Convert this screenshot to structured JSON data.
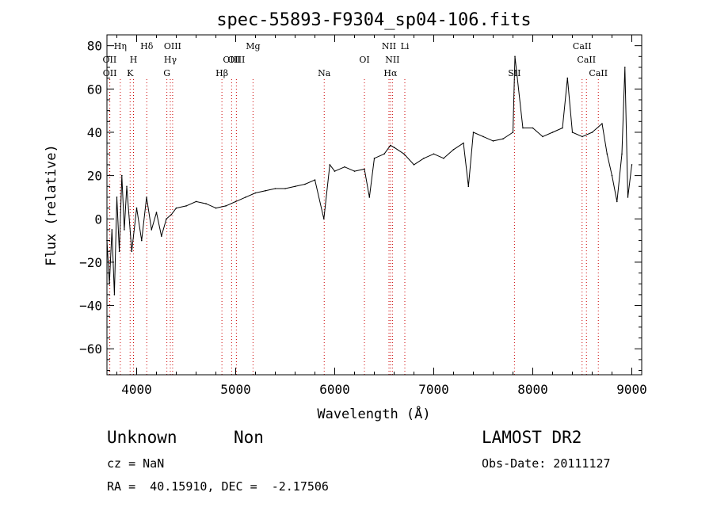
{
  "chart_data": {
    "type": "line",
    "title": "spec-55893-F9304_sp04-106.fits",
    "xlabel": "Wavelength (Å)",
    "ylabel": "Flux (relative)",
    "xlim": [
      3700,
      9100
    ],
    "ylim": [
      -72,
      85
    ],
    "xticks": [
      4000,
      5000,
      6000,
      7000,
      8000,
      9000
    ],
    "yticks": [
      -60,
      -40,
      -20,
      0,
      20,
      40,
      60,
      80
    ],
    "grid": false,
    "line_color": "#000000",
    "marker_color": "#cc0000",
    "x": [
      3700,
      3725,
      3750,
      3775,
      3800,
      3825,
      3850,
      3875,
      3900,
      3950,
      4000,
      4050,
      4100,
      4150,
      4200,
      4250,
      4300,
      4350,
      4400,
      4500,
      4600,
      4700,
      4800,
      4900,
      5000,
      5100,
      5200,
      5300,
      5400,
      5500,
      5600,
      5700,
      5800,
      5890,
      5950,
      6000,
      6100,
      6200,
      6300,
      6350,
      6400,
      6500,
      6563,
      6600,
      6700,
      6800,
      6900,
      7000,
      7100,
      7200,
      7300,
      7350,
      7400,
      7500,
      7600,
      7700,
      7800,
      7820,
      7900,
      8000,
      8100,
      8200,
      8300,
      8350,
      8400,
      8500,
      8600,
      8700,
      8750,
      8800,
      8850,
      8900,
      8930,
      8960,
      9000
    ],
    "y": [
      -10,
      -30,
      -5,
      -35,
      10,
      -15,
      20,
      -5,
      15,
      -15,
      5,
      -10,
      10,
      -5,
      3,
      -8,
      0,
      2,
      5,
      6,
      8,
      7,
      5,
      6,
      8,
      10,
      12,
      13,
      14,
      14,
      15,
      16,
      18,
      0,
      25,
      22,
      24,
      22,
      23,
      10,
      28,
      30,
      34,
      33,
      30,
      25,
      28,
      30,
      28,
      32,
      35,
      15,
      40,
      38,
      36,
      37,
      40,
      75,
      42,
      42,
      38,
      40,
      42,
      65,
      40,
      38,
      40,
      44,
      30,
      20,
      8,
      30,
      70,
      10,
      25
    ],
    "line_markers": [
      {
        "label": "OII",
        "x": 3727,
        "row": 2
      },
      {
        "label": "OII",
        "x": 3729,
        "row": 3
      },
      {
        "label": "Hη",
        "x": 3835,
        "row": 1
      },
      {
        "label": "H",
        "x": 3968,
        "row": 2
      },
      {
        "label": "K",
        "x": 3934,
        "row": 3
      },
      {
        "label": "Hδ",
        "x": 4102,
        "row": 1
      },
      {
        "label": "OIII",
        "x": 4363,
        "row": 1
      },
      {
        "label": "Hγ",
        "x": 4340,
        "row": 2
      },
      {
        "label": "G",
        "x": 4305,
        "row": 3
      },
      {
        "label": "Hβ",
        "x": 4861,
        "row": 3
      },
      {
        "label": "OIII",
        "x": 4959,
        "row": 2
      },
      {
        "label": "OIII",
        "x": 5007,
        "row": 2
      },
      {
        "label": "Mg",
        "x": 5175,
        "row": 1
      },
      {
        "label": "Na",
        "x": 5894,
        "row": 3
      },
      {
        "label": "OI",
        "x": 6300,
        "row": 2
      },
      {
        "label": "NII",
        "x": 6548,
        "row": 1
      },
      {
        "label": "NII",
        "x": 6583,
        "row": 2
      },
      {
        "label": "Hα",
        "x": 6563,
        "row": 3
      },
      {
        "label": "Li",
        "x": 6708,
        "row": 1
      },
      {
        "label": "SII",
        "x": 7815,
        "row": 3
      },
      {
        "label": "CaII",
        "x": 8498,
        "row": 1
      },
      {
        "label": "CaII",
        "x": 8542,
        "row": 2
      },
      {
        "label": "CaII",
        "x": 8662,
        "row": 3
      }
    ]
  },
  "info": {
    "class": "Unknown",
    "subclass": "Non",
    "survey": "LAMOST DR2",
    "cz": "cz = NaN",
    "obs_date": "Obs-Date: 20111127",
    "coords": "RA =  40.15910, DEC =  -2.17506"
  }
}
